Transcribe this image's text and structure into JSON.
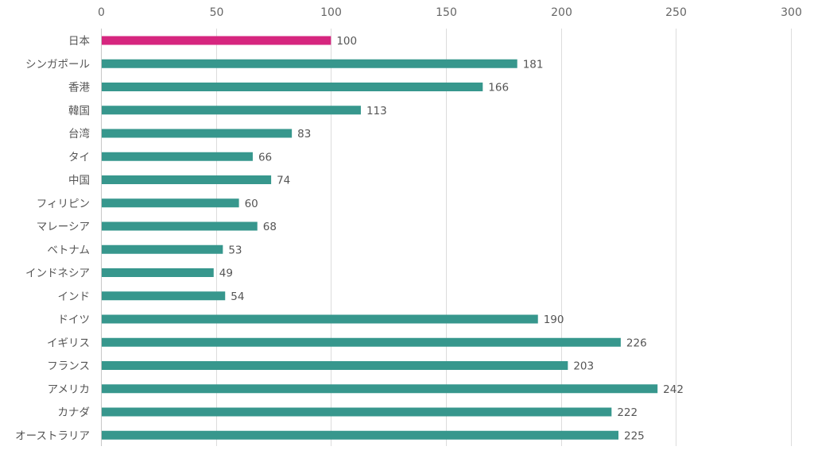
{
  "chart_data": {
    "type": "bar",
    "orientation": "horizontal",
    "title": "",
    "xlabel": "",
    "ylabel": "",
    "xlim": [
      0,
      300
    ],
    "x_ticks": [
      0,
      50,
      100,
      150,
      200,
      250,
      300
    ],
    "x_tick_labels": [
      "0",
      "50",
      "100",
      "150",
      "200",
      "250",
      "300"
    ],
    "axis_position": "top",
    "grid": true,
    "legend": "none",
    "categories": [
      "日本",
      "シンガポール",
      "香港",
      "韓国",
      "台湾",
      "タイ",
      "中国",
      "フィリピン",
      "マレーシア",
      "ベトナム",
      "インドネシア",
      "インド",
      "ドイツ",
      "イギリス",
      "フランス",
      "アメリカ",
      "カナダ",
      "オーストラリア"
    ],
    "values": [
      100,
      181,
      166,
      113,
      83,
      66,
      74,
      60,
      68,
      53,
      49,
      54,
      190,
      226,
      203,
      242,
      222,
      225
    ],
    "highlight_index": 0,
    "colors": {
      "highlight": "#d6267f",
      "default": "#37978d"
    }
  }
}
